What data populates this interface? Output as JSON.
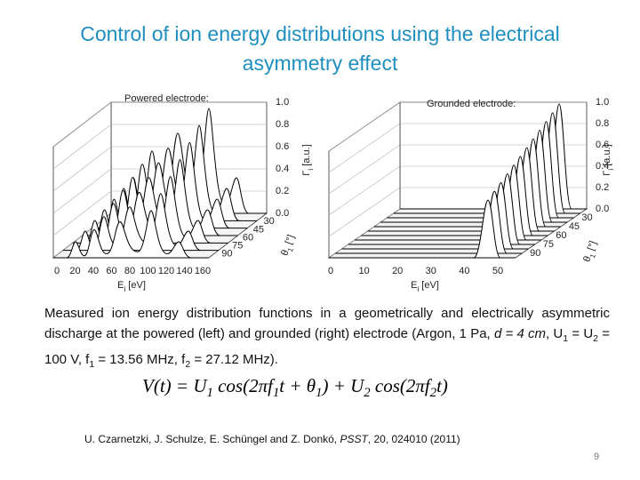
{
  "title": [
    "Control of ion energy distributions using the electrical",
    "asymmetry effect"
  ],
  "plots": [
    {
      "panel_title": "Powered electrode:",
      "y_ticks": [
        "1.0",
        "0.8",
        "0.6",
        "0.4",
        "0.2",
        "0.0"
      ],
      "y_label": [
        "Γ",
        "i",
        " [a.u.]"
      ],
      "theta_ticks": [
        "30",
        "45",
        "60",
        "75",
        "90"
      ],
      "theta_label": [
        "θ",
        "1",
        " [°]"
      ],
      "x_ticks": [
        "0",
        "20",
        "40",
        "60",
        "80",
        "100",
        "120",
        "140",
        "160"
      ],
      "x_label": [
        "E",
        "i",
        " [eV]"
      ]
    },
    {
      "panel_title": "Grounded electrode:",
      "y_ticks": [
        "1.0",
        "0.8",
        "0.6",
        "0.4",
        "0.2",
        "0.0"
      ],
      "y_label": [
        "Γ",
        "i",
        " [a.u.]"
      ],
      "theta_ticks": [
        "30",
        "45",
        "60",
        "75",
        "90"
      ],
      "theta_label": [
        "θ",
        "1",
        " [°]"
      ],
      "x_ticks": [
        "0",
        "10",
        "20",
        "30",
        "40",
        "50"
      ],
      "x_label": [
        "E",
        "i",
        " [eV]"
      ]
    }
  ],
  "caption": [
    "Measured ion energy distribution functions in a geometrically and electrically asymmetric discharge at the powered (left) and grounded (right) electrode (Argon, 1 Pa, ",
    "d = 4 cm",
    ", U",
    "1",
    " = U",
    "2",
    " = 100 V, f",
    "1",
    " = 13.56 MHz, f",
    "2",
    " = 27.12 MHz)."
  ],
  "equation": [
    "V(t) = U",
    "1",
    " cos(2πf",
    "1",
    "t + θ",
    "1",
    ") + U",
    "2",
    " cos(2πf",
    "2",
    "t)"
  ],
  "citation": [
    "U. Czarnetzki, J. Schulze, E. Schüngel and Z. Donkó, ",
    "PSST",
    ", 20, 024010 (2011)"
  ],
  "page_number": "9"
}
